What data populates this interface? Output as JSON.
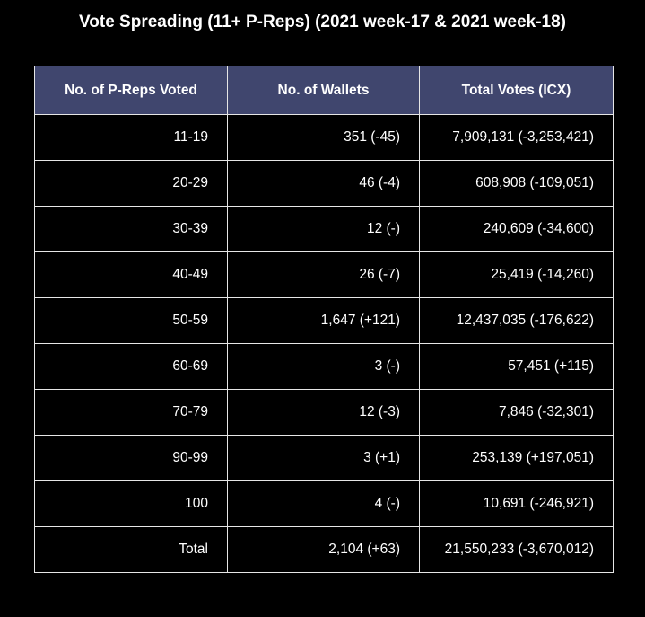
{
  "chart_data": {
    "type": "table",
    "title": "Vote Spreading (11+ P-Reps) (2021 week-17 & 2021 week-18)",
    "header_color": "#40466e",
    "columns": [
      "No. of P-Reps Voted",
      "No. of Wallets",
      "Total Votes (ICX)"
    ],
    "rows": [
      [
        "11-19",
        "351 (-45)",
        "7,909,131 (-3,253,421)"
      ],
      [
        "20-29",
        "46 (-4)",
        "608,908 (-109,051)"
      ],
      [
        "30-39",
        "12 (-)",
        "240,609 (-34,600)"
      ],
      [
        "40-49",
        "26 (-7)",
        "25,419 (-14,260)"
      ],
      [
        "50-59",
        "1,647 (+121)",
        "12,437,035 (-176,622)"
      ],
      [
        "60-69",
        "3 (-)",
        "57,451 (+115)"
      ],
      [
        "70-79",
        "12 (-3)",
        "7,846 (-32,301)"
      ],
      [
        "90-99",
        "3 (+1)",
        "253,139 (+197,051)"
      ],
      [
        "100",
        "4 (-)",
        "10,691 (-246,921)"
      ],
      [
        "Total",
        "2,104 (+63)",
        "21,550,233 (-3,670,012)"
      ]
    ]
  }
}
